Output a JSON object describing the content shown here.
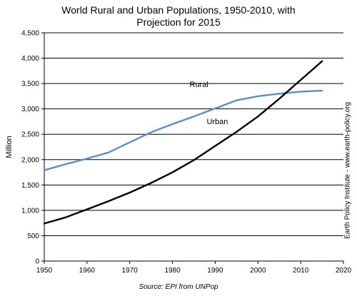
{
  "chart_data": {
    "type": "line",
    "title_lines": [
      "World Rural and Urban Populations, 1950-2010, with",
      "Projection for 2015"
    ],
    "ylabel": "Million",
    "xlabel": "",
    "xlim": [
      1950,
      2020
    ],
    "ylim": [
      0,
      4500
    ],
    "x_ticks": [
      1950,
      1960,
      1970,
      1980,
      1990,
      2000,
      2010,
      2020
    ],
    "y_ticks": [
      0,
      500,
      1000,
      1500,
      2000,
      2500,
      3000,
      3500,
      4000,
      4500
    ],
    "y_tick_labels": [
      "0",
      "500",
      "1,000",
      "1,500",
      "2,000",
      "2,500",
      "3,000",
      "3,500",
      "4,000",
      "4,500"
    ],
    "grid": "horizontal",
    "x": [
      1950,
      1955,
      1960,
      1965,
      1970,
      1975,
      1980,
      1985,
      1990,
      1995,
      2000,
      2005,
      2010,
      2015
    ],
    "series": [
      {
        "name": "Rural",
        "color": "#5b8fc7",
        "values": [
          1790,
          1910,
          2020,
          2140,
          2340,
          2540,
          2700,
          2850,
          3010,
          3170,
          3250,
          3300,
          3340,
          3360
        ]
      },
      {
        "name": "Urban",
        "color": "#000000",
        "values": [
          740,
          860,
          1020,
          1180,
          1350,
          1540,
          1750,
          1990,
          2270,
          2550,
          2850,
          3200,
          3570,
          3940
        ]
      }
    ],
    "source": "Source: EPI from UNPop",
    "side_text": "Earth Policy Institute - www.earth-policy.org"
  }
}
